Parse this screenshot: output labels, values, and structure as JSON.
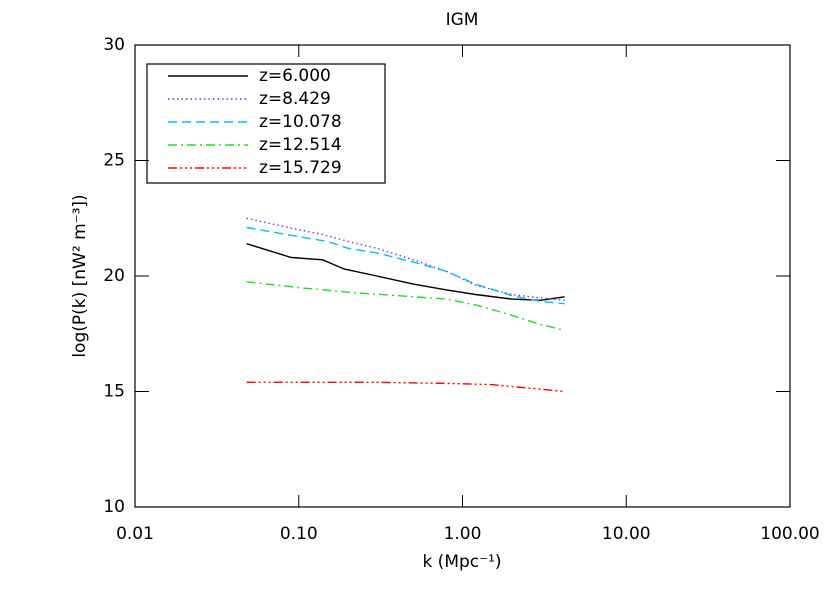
{
  "chart_data": {
    "type": "line",
    "title": "IGM",
    "xlabel": "k (Mpc⁻¹)",
    "ylabel": "log(P(k) [nW² m⁻³])",
    "xscale": "log",
    "xlim": [
      0.01,
      100
    ],
    "ylim": [
      10,
      30
    ],
    "xticks": [
      {
        "value": 0.01,
        "label": "0.01"
      },
      {
        "value": 0.1,
        "label": "0.10"
      },
      {
        "value": 1,
        "label": "1.00"
      },
      {
        "value": 10,
        "label": "10.00"
      },
      {
        "value": 100,
        "label": "100.00"
      }
    ],
    "yticks": [
      10,
      15,
      20,
      25,
      30
    ],
    "legend": "upper-left",
    "series": [
      {
        "name": "z=6.000",
        "color": "#000000",
        "dash": "solid",
        "x": [
          0.048,
          0.09,
          0.14,
          0.19,
          0.3,
          0.5,
          0.8,
          1.2,
          2,
          3,
          4.2
        ],
        "values": [
          21.4,
          20.8,
          20.7,
          20.3,
          20.0,
          19.65,
          19.4,
          19.2,
          19.0,
          18.95,
          19.1
        ]
      },
      {
        "name": "z=8.429",
        "color": "#8b2be2",
        "dash": "dotted",
        "x": [
          0.048,
          0.1,
          0.14,
          0.2,
          0.3,
          0.5,
          0.8,
          1.2,
          2,
          3,
          4.2
        ],
        "values": [
          22.5,
          22.0,
          21.8,
          21.5,
          21.2,
          20.7,
          20.2,
          19.6,
          19.2,
          19.05,
          18.95
        ]
      },
      {
        "name": "z=10.078",
        "color": "#00bfff",
        "dash": "dashed",
        "x": [
          0.048,
          0.1,
          0.15,
          0.2,
          0.3,
          0.5,
          0.8,
          1.2,
          2,
          3,
          4.2
        ],
        "values": [
          22.1,
          21.7,
          21.5,
          21.2,
          21.0,
          20.6,
          20.2,
          19.65,
          19.15,
          18.9,
          18.8
        ]
      },
      {
        "name": "z=12.514",
        "color": "#22dd22",
        "dash": "dashdot",
        "x": [
          0.048,
          0.1,
          0.2,
          0.4,
          0.8,
          1.2,
          2,
          3,
          4.2
        ],
        "values": [
          19.75,
          19.5,
          19.3,
          19.15,
          19.0,
          18.75,
          18.3,
          17.9,
          17.65
        ]
      },
      {
        "name": "z=15.729",
        "color": "#ff0000",
        "dash": "dashdotdot",
        "x": [
          0.048,
          0.1,
          0.3,
          0.8,
          1.5,
          2.5,
          4.2
        ],
        "values": [
          15.4,
          15.4,
          15.4,
          15.35,
          15.3,
          15.15,
          15.0
        ]
      }
    ]
  }
}
